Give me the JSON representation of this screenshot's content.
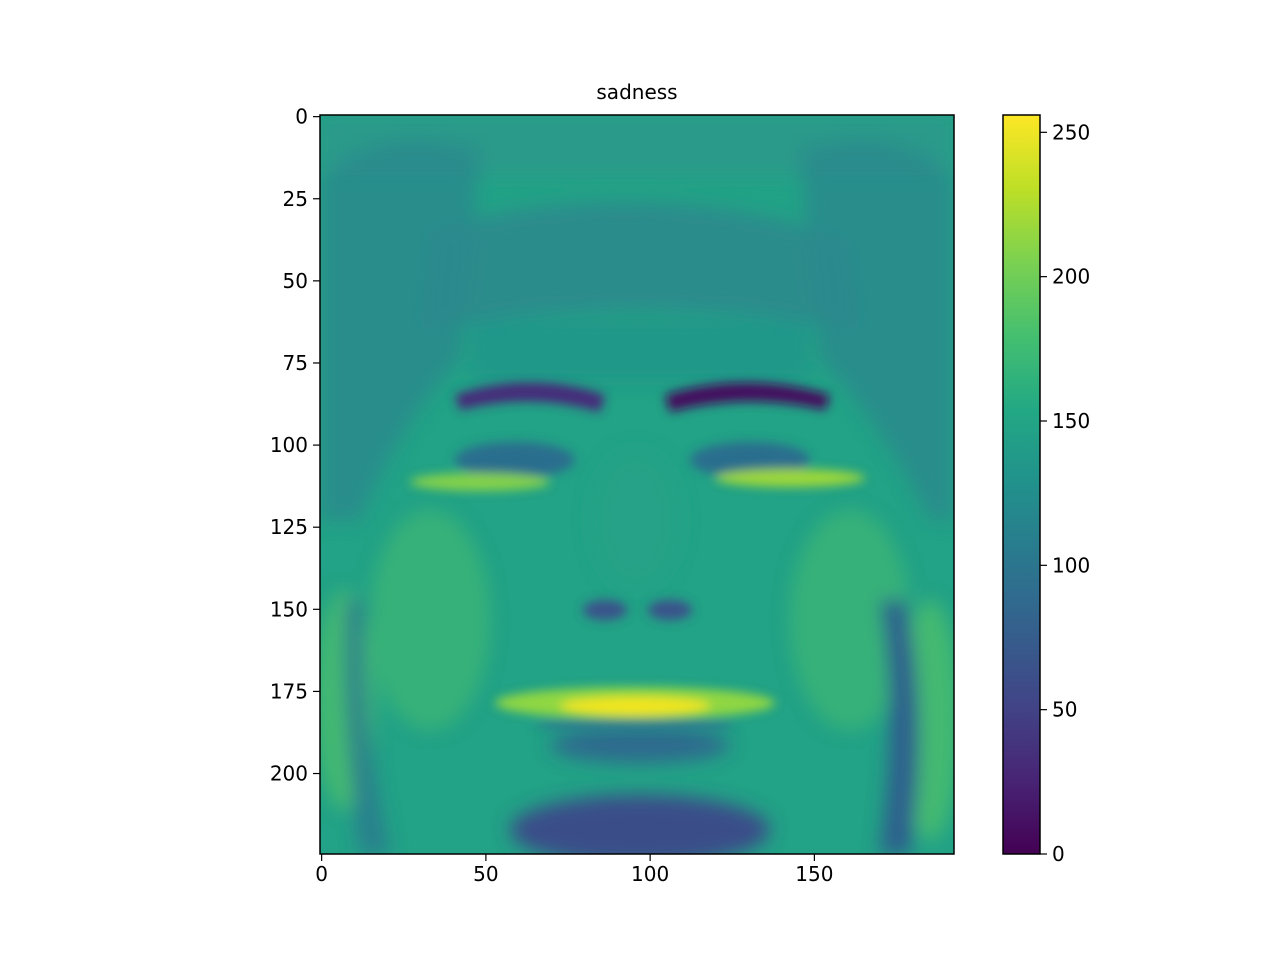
{
  "chart_data": {
    "type": "heatmap",
    "title": "sadness",
    "xlabel": "",
    "ylabel": "",
    "xlim": [
      -0.5,
      192.5
    ],
    "ylim": [
      224.5,
      -0.5
    ],
    "x_ticks": [
      0,
      50,
      100,
      150
    ],
    "y_ticks": [
      0,
      25,
      50,
      75,
      100,
      125,
      150,
      175,
      200
    ],
    "colormap": "viridis",
    "colorbar": {
      "min": 0,
      "max": 256,
      "ticks": [
        0,
        50,
        100,
        150,
        200,
        250
      ]
    },
    "image_description_values": {
      "background_level": 130,
      "face_regions": [
        {
          "region": "hair-bangs",
          "value": 105
        },
        {
          "region": "eyebrow-left",
          "value": 40
        },
        {
          "region": "eyebrow-right",
          "value": 22
        },
        {
          "region": "under-eye-left",
          "value": 185
        },
        {
          "region": "under-eye-right",
          "value": 195
        },
        {
          "region": "nostrils",
          "value": 70
        },
        {
          "region": "upper-lip",
          "value": 235
        },
        {
          "region": "chin-shadow",
          "value": 55
        }
      ]
    }
  }
}
